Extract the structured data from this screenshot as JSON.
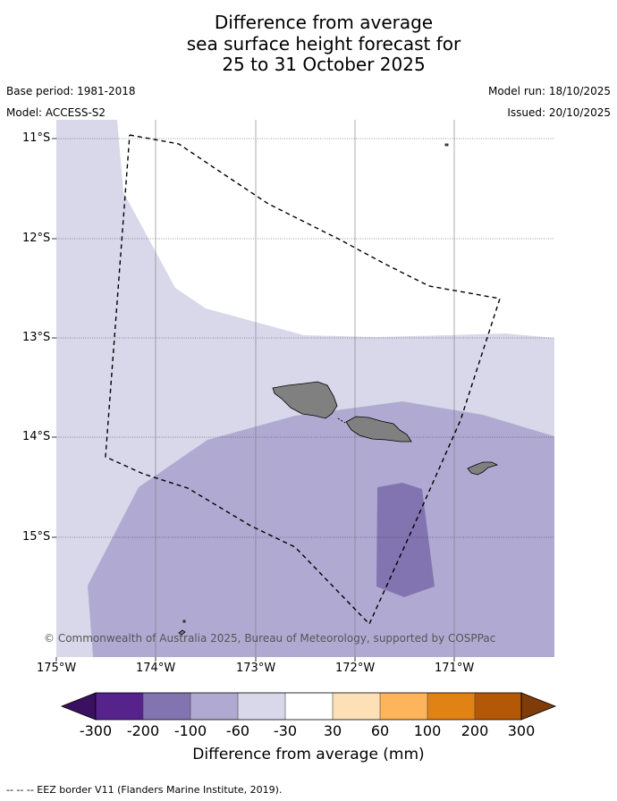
{
  "title": {
    "line1": "Difference from average",
    "line2": "sea surface height forecast for",
    "line3": "25 to 31 October 2025"
  },
  "meta": {
    "base_period": "Base period: 1981-2018",
    "model": "Model: ACCESS-S2",
    "model_run": "Model run: 18/10/2025",
    "issued": "Issued: 20/10/2025"
  },
  "map": {
    "lat_labels": [
      "11°S",
      "12°S",
      "13°S",
      "14°S",
      "15°S"
    ],
    "lon_labels": [
      "175°W",
      "174°W",
      "173°W",
      "172°W",
      "171°W"
    ],
    "copyright": "© Commonwealth of Australia 2025, Bureau of Meteorology, supported by COSPPac",
    "colors": {
      "band_neg30_neg60": "#d8d8ea",
      "band_neg60_neg100": "#b0aad2",
      "band_neg100_neg200": "#8274b0",
      "land": "#808080",
      "no_change": "#ffffff"
    }
  },
  "colorbar": {
    "ticks": [
      "-300",
      "-200",
      "-100",
      "-60",
      "-30",
      "30",
      "60",
      "100",
      "200",
      "300"
    ],
    "colors": [
      "#3b1060",
      "#56228c",
      "#8274b0",
      "#b0aad2",
      "#d8d8ea",
      "#ffffff",
      "#fee0b6",
      "#fdb45a",
      "#e08214",
      "#b35806",
      "#7f3b08"
    ],
    "label": "Difference from average (mm)"
  },
  "footnote": "--  --  -- EEZ border V11 (Flanders Marine Institute, 2019)."
}
